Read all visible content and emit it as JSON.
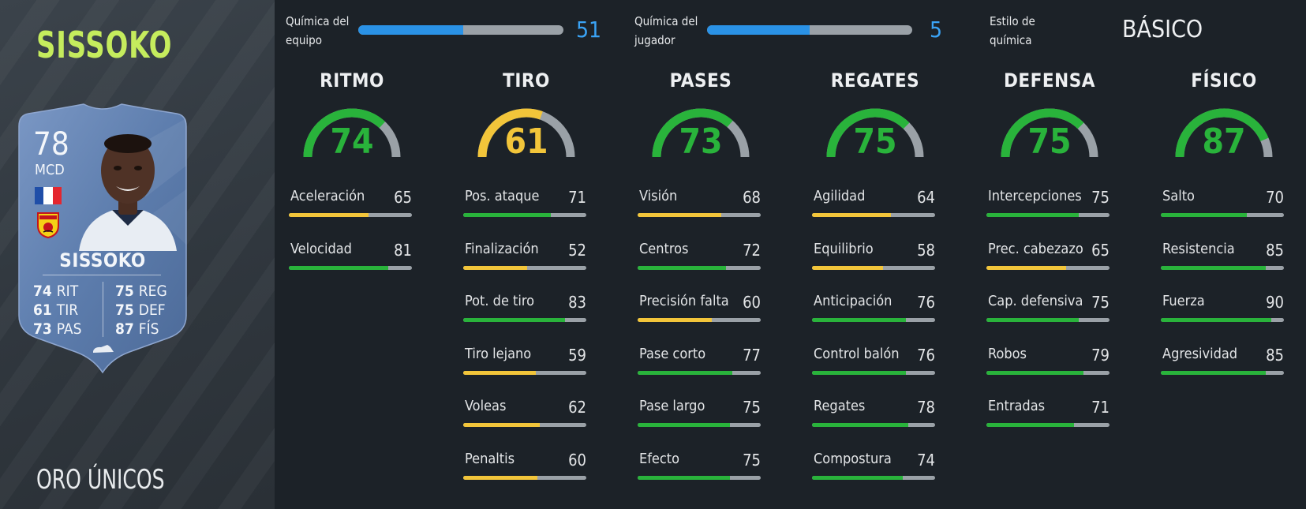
{
  "player": {
    "name": "SISSOKO",
    "version": "ORO ÚNICOS"
  },
  "card": {
    "rating": "78",
    "position": "MCD",
    "name": "SISSOKO",
    "stats_left": [
      {
        "value": "74",
        "label": "RIT"
      },
      {
        "value": "61",
        "label": "TIR"
      },
      {
        "value": "73",
        "label": "PAS"
      }
    ],
    "stats_right": [
      {
        "value": "75",
        "label": "REG"
      },
      {
        "value": "75",
        "label": "DEF"
      },
      {
        "value": "87",
        "label": "FÍS"
      }
    ],
    "flag_colors": [
      "#1f4ea8",
      "#ffffff",
      "#e4262f"
    ],
    "card_color": "#5d7dad"
  },
  "chemistry": {
    "team": {
      "label_line1": "Química del",
      "label_line2": "equipo",
      "value": "51",
      "fill": 0.51
    },
    "player": {
      "label_line1": "Química del",
      "label_line2": "jugador",
      "value": "5",
      "fill": 0.5
    },
    "style": {
      "label_line1": "Estilo de",
      "label_line2": "química",
      "value": "BÁSICO"
    }
  },
  "colors": {
    "green": "#29b33b",
    "yellow": "#f2c53a",
    "track": "#9aa1a7",
    "chem_blue": "#2a92e6"
  },
  "categories": [
    {
      "title": "RITMO",
      "value": 74,
      "color": "green",
      "attributes": [
        {
          "name": "Aceleración",
          "value": 65
        },
        {
          "name": "Velocidad",
          "value": 81
        }
      ]
    },
    {
      "title": "TIRO",
      "value": 61,
      "color": "yellow",
      "attributes": [
        {
          "name": "Pos. ataque",
          "value": 71
        },
        {
          "name": "Finalización",
          "value": 52
        },
        {
          "name": "Pot. de tiro",
          "value": 83
        },
        {
          "name": "Tiro lejano",
          "value": 59
        },
        {
          "name": "Voleas",
          "value": 62
        },
        {
          "name": "Penaltis",
          "value": 60
        }
      ]
    },
    {
      "title": "PASES",
      "value": 73,
      "color": "green",
      "attributes": [
        {
          "name": "Visión",
          "value": 68
        },
        {
          "name": "Centros",
          "value": 72
        },
        {
          "name": "Precisión falta",
          "value": 60
        },
        {
          "name": "Pase corto",
          "value": 77
        },
        {
          "name": "Pase largo",
          "value": 75
        },
        {
          "name": "Efecto",
          "value": 75
        }
      ]
    },
    {
      "title": "REGATES",
      "value": 75,
      "color": "green",
      "attributes": [
        {
          "name": "Agilidad",
          "value": 64
        },
        {
          "name": "Equilibrio",
          "value": 58
        },
        {
          "name": "Anticipación",
          "value": 76
        },
        {
          "name": "Control balón",
          "value": 76
        },
        {
          "name": "Regates",
          "value": 78
        },
        {
          "name": "Compostura",
          "value": 74
        }
      ]
    },
    {
      "title": "DEFENSA",
      "value": 75,
      "color": "green",
      "attributes": [
        {
          "name": "Intercepciones",
          "value": 75
        },
        {
          "name": "Prec. cabezazo",
          "value": 65
        },
        {
          "name": "Cap. defensiva",
          "value": 75
        },
        {
          "name": "Robos",
          "value": 79
        },
        {
          "name": "Entradas",
          "value": 71
        }
      ]
    },
    {
      "title": "FÍSICO",
      "value": 87,
      "color": "green",
      "attributes": [
        {
          "name": "Salto",
          "value": 70
        },
        {
          "name": "Resistencia",
          "value": 85
        },
        {
          "name": "Fuerza",
          "value": 90
        },
        {
          "name": "Agresividad",
          "value": 85
        }
      ]
    }
  ]
}
